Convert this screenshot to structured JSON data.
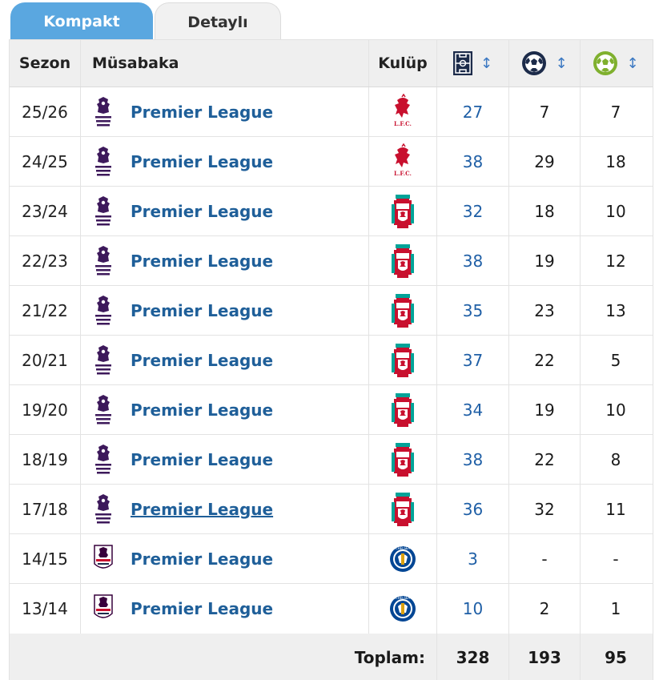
{
  "tabs": {
    "active": "Kompakt",
    "inactive": "Detaylı"
  },
  "header": {
    "season": "Sezon",
    "competition": "Müsabaka",
    "club": "Kulüp",
    "apps_icon": "pitch-icon",
    "goals_icon": "football-icon",
    "assists_icon": "football-assist-icon",
    "sort_symbol": "↕"
  },
  "colors": {
    "tab_active": "#5aa7e0",
    "link": "#1f5f99",
    "pl_purple": "#3d195b",
    "liverpool_red": "#c8102e",
    "chelsea_blue": "#034694"
  },
  "rows": [
    {
      "season": "25/26",
      "competition": "Premier League",
      "club": "liverpool-lfc",
      "apps": "27",
      "goals": "7",
      "assists": "7"
    },
    {
      "season": "24/25",
      "competition": "Premier League",
      "club": "liverpool-lfc",
      "apps": "38",
      "goals": "29",
      "assists": "18"
    },
    {
      "season": "23/24",
      "competition": "Premier League",
      "club": "liverpool-crest",
      "apps": "32",
      "goals": "18",
      "assists": "10"
    },
    {
      "season": "22/23",
      "competition": "Premier League",
      "club": "liverpool-crest",
      "apps": "38",
      "goals": "19",
      "assists": "12"
    },
    {
      "season": "21/22",
      "competition": "Premier League",
      "club": "liverpool-crest",
      "apps": "35",
      "goals": "23",
      "assists": "13"
    },
    {
      "season": "20/21",
      "competition": "Premier League",
      "club": "liverpool-crest",
      "apps": "37",
      "goals": "22",
      "assists": "5"
    },
    {
      "season": "19/20",
      "competition": "Premier League",
      "club": "liverpool-crest",
      "apps": "34",
      "goals": "19",
      "assists": "10"
    },
    {
      "season": "18/19",
      "competition": "Premier League",
      "club": "liverpool-crest",
      "apps": "38",
      "goals": "22",
      "assists": "8"
    },
    {
      "season": "17/18",
      "competition": "Premier League",
      "club": "liverpool-crest",
      "apps": "36",
      "goals": "32",
      "assists": "11"
    },
    {
      "season": "14/15",
      "competition": "Premier League",
      "club": "chelsea",
      "apps": "3",
      "goals": "-",
      "assists": "-"
    },
    {
      "season": "13/14",
      "competition": "Premier League",
      "club": "chelsea",
      "apps": "10",
      "goals": "2",
      "assists": "1"
    }
  ],
  "footer": {
    "label": "Toplam:",
    "apps": "328",
    "goals": "193",
    "assists": "95"
  }
}
